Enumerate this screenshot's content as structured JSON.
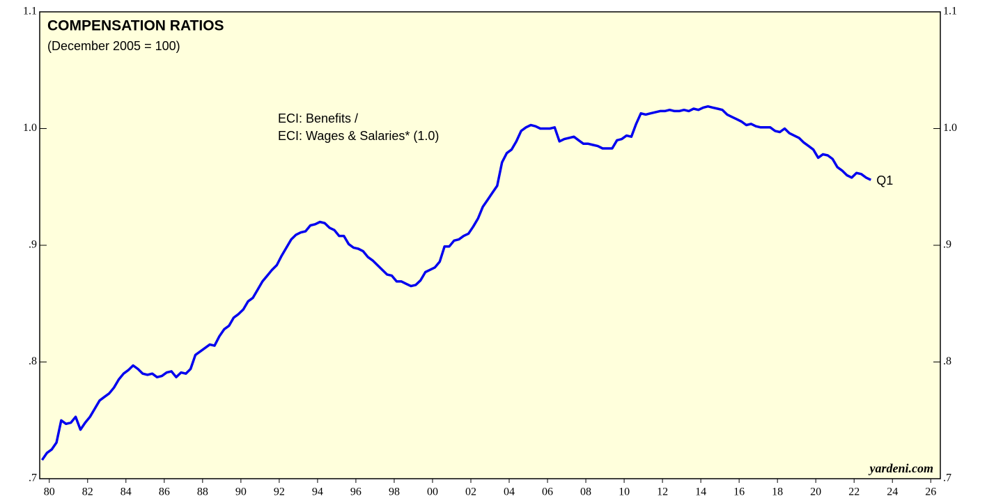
{
  "chart_data": {
    "type": "line",
    "title": "COMPENSATION RATIOS",
    "subtitle": "(December 2005 = 100)",
    "annotations": [
      "ECI: Benefits /",
      "ECI: Wages & Salaries* (1.0)"
    ],
    "end_label": "Q1",
    "source": "yardeni.com",
    "background": "#ffffdc",
    "xlim": [
      1980,
      2027
    ],
    "ylim": [
      0.7,
      1.1
    ],
    "yticks": [
      {
        "value": 0.7,
        "label": ".7"
      },
      {
        "value": 0.8,
        "label": ".8"
      },
      {
        "value": 0.9,
        "label": ".9"
      },
      {
        "value": 1.0,
        "label": "1.0"
      },
      {
        "value": 1.1,
        "label": "1.1"
      }
    ],
    "xticks": [
      {
        "value": 1980.5,
        "label": "80"
      },
      {
        "value": 1982.5,
        "label": "82"
      },
      {
        "value": 1984.5,
        "label": "84"
      },
      {
        "value": 1986.5,
        "label": "86"
      },
      {
        "value": 1988.5,
        "label": "88"
      },
      {
        "value": 1990.5,
        "label": "90"
      },
      {
        "value": 1992.5,
        "label": "92"
      },
      {
        "value": 1994.5,
        "label": "94"
      },
      {
        "value": 1996.5,
        "label": "96"
      },
      {
        "value": 1998.5,
        "label": "98"
      },
      {
        "value": 2000.5,
        "label": "00"
      },
      {
        "value": 2002.5,
        "label": "02"
      },
      {
        "value": 2004.5,
        "label": "04"
      },
      {
        "value": 2006.5,
        "label": "06"
      },
      {
        "value": 2008.5,
        "label": "08"
      },
      {
        "value": 2010.5,
        "label": "10"
      },
      {
        "value": 2012.5,
        "label": "12"
      },
      {
        "value": 2014.5,
        "label": "14"
      },
      {
        "value": 2016.5,
        "label": "16"
      },
      {
        "value": 2018.5,
        "label": "18"
      },
      {
        "value": 2020.5,
        "label": "20"
      },
      {
        "value": 2022.5,
        "label": "22"
      },
      {
        "value": 2024.5,
        "label": "24"
      },
      {
        "value": 2026.5,
        "label": "26"
      }
    ],
    "x": [
      1980.125,
      1980.375,
      1980.625,
      1980.875,
      1981.125,
      1981.375,
      1981.625,
      1981.875,
      1982.125,
      1982.375,
      1982.625,
      1982.875,
      1983.125,
      1983.375,
      1983.625,
      1983.875,
      1984.125,
      1984.375,
      1984.625,
      1984.875,
      1985.125,
      1985.375,
      1985.625,
      1985.875,
      1986.125,
      1986.375,
      1986.625,
      1986.875,
      1987.125,
      1987.375,
      1987.625,
      1987.875,
      1988.125,
      1988.375,
      1988.625,
      1988.875,
      1989.125,
      1989.375,
      1989.625,
      1989.875,
      1990.125,
      1990.375,
      1990.625,
      1990.875,
      1991.125,
      1991.375,
      1991.625,
      1991.875,
      1992.125,
      1992.375,
      1992.625,
      1992.875,
      1993.125,
      1993.375,
      1993.625,
      1993.875,
      1994.125,
      1994.375,
      1994.625,
      1994.875,
      1995.125,
      1995.375,
      1995.625,
      1995.875,
      1996.125,
      1996.375,
      1996.625,
      1996.875,
      1997.125,
      1997.375,
      1997.625,
      1997.875,
      1998.125,
      1998.375,
      1998.625,
      1998.875,
      1999.125,
      1999.375,
      1999.625,
      1999.875,
      2000.125,
      2000.375,
      2000.625,
      2000.875,
      2001.125,
      2001.375,
      2001.625,
      2001.875,
      2002.125,
      2002.375,
      2002.625,
      2002.875,
      2003.125,
      2003.375,
      2003.625,
      2003.875,
      2004.125,
      2004.375,
      2004.625,
      2004.875,
      2005.125,
      2005.375,
      2005.625,
      2005.875,
      2006.125,
      2006.375,
      2006.625,
      2006.875,
      2007.125,
      2007.375,
      2007.625,
      2007.875,
      2008.125,
      2008.375,
      2008.625,
      2008.875,
      2009.125,
      2009.375,
      2009.625,
      2009.875,
      2010.125,
      2010.375,
      2010.625,
      2010.875,
      2011.125,
      2011.375,
      2011.625,
      2011.875,
      2012.125,
      2012.375,
      2012.625,
      2012.875,
      2013.125,
      2013.375,
      2013.625,
      2013.875,
      2014.125,
      2014.375,
      2014.625,
      2014.875,
      2015.125,
      2015.375,
      2015.625,
      2015.875,
      2016.125,
      2016.375,
      2016.625,
      2016.875,
      2017.125,
      2017.375,
      2017.625,
      2017.875,
      2018.125,
      2018.375,
      2018.625,
      2018.875,
      2019.125,
      2019.375,
      2019.625,
      2019.875,
      2020.125,
      2020.375,
      2020.625,
      2020.875,
      2021.125,
      2021.375,
      2021.625,
      2021.875,
      2022.125,
      2022.375,
      2022.625,
      2022.875,
      2023.125,
      2023.375
    ],
    "series": [
      {
        "color": "#0000ee",
        "values": [
          0.716,
          0.722,
          0.725,
          0.731,
          0.75,
          0.747,
          0.748,
          0.753,
          0.742,
          0.748,
          0.753,
          0.76,
          0.767,
          0.77,
          0.773,
          0.778,
          0.785,
          0.79,
          0.793,
          0.797,
          0.794,
          0.79,
          0.789,
          0.79,
          0.787,
          0.788,
          0.791,
          0.792,
          0.787,
          0.791,
          0.79,
          0.794,
          0.806,
          0.809,
          0.812,
          0.815,
          0.814,
          0.822,
          0.828,
          0.831,
          0.838,
          0.841,
          0.845,
          0.852,
          0.855,
          0.862,
          0.869,
          0.874,
          0.879,
          0.883,
          0.891,
          0.898,
          0.905,
          0.909,
          0.911,
          0.912,
          0.917,
          0.918,
          0.92,
          0.919,
          0.915,
          0.913,
          0.908,
          0.908,
          0.901,
          0.898,
          0.897,
          0.895,
          0.89,
          0.887,
          0.883,
          0.879,
          0.875,
          0.874,
          0.869,
          0.869,
          0.867,
          0.865,
          0.866,
          0.87,
          0.877,
          0.879,
          0.881,
          0.886,
          0.899,
          0.899,
          0.904,
          0.905,
          0.908,
          0.91,
          0.916,
          0.923,
          0.933,
          0.939,
          0.945,
          0.951,
          0.971,
          0.979,
          0.982,
          0.989,
          0.998,
          1.001,
          1.003,
          1.002,
          1.0,
          1.0,
          1.0,
          1.001,
          0.989,
          0.991,
          0.992,
          0.993,
          0.99,
          0.987,
          0.987,
          0.986,
          0.985,
          0.983,
          0.983,
          0.983,
          0.99,
          0.991,
          0.994,
          0.993,
          1.004,
          1.013,
          1.012,
          1.013,
          1.014,
          1.015,
          1.015,
          1.016,
          1.015,
          1.015,
          1.016,
          1.015,
          1.017,
          1.016,
          1.018,
          1.019,
          1.018,
          1.017,
          1.016,
          1.012,
          1.01,
          1.008,
          1.006,
          1.003,
          1.004,
          1.002,
          1.001,
          1.001,
          1.001,
          0.998,
          0.997,
          1.0,
          0.996,
          0.994,
          0.992,
          0.988,
          0.985,
          0.982,
          0.975,
          0.978,
          0.977,
          0.974,
          0.967,
          0.964,
          0.96,
          0.958,
          0.962,
          0.961,
          0.958,
          0.956
        ]
      }
    ]
  }
}
